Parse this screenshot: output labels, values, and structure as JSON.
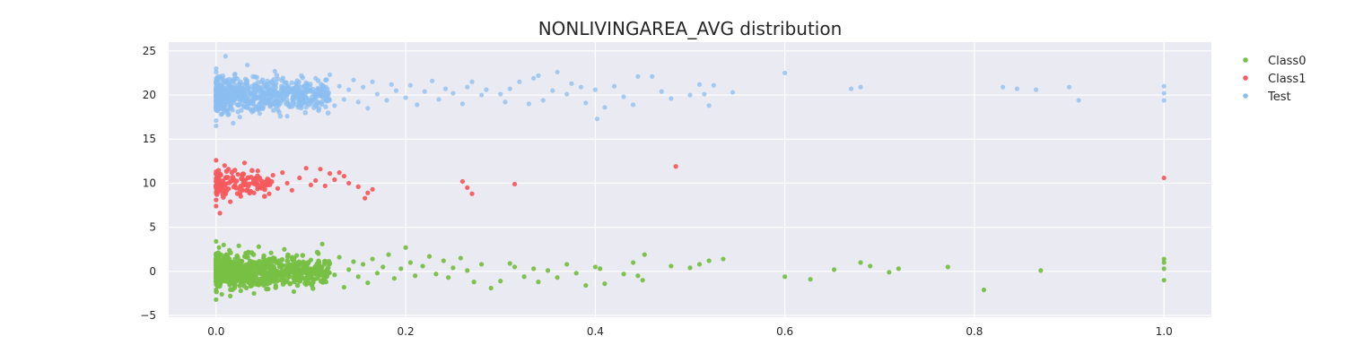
{
  "chart_data": {
    "type": "scatter",
    "title": "NONLIVINGAREA_AVG distribution",
    "xlabel": "",
    "ylabel": "",
    "xlim": [
      -0.05,
      1.05
    ],
    "ylim": [
      -5.2,
      26
    ],
    "xticks": [
      0.0,
      0.2,
      0.4,
      0.6,
      0.8,
      1.0
    ],
    "xtick_labels": [
      "0.0",
      "0.2",
      "0.4",
      "0.6",
      "0.8",
      "1.0"
    ],
    "yticks": [
      -5,
      0,
      5,
      10,
      15,
      20,
      25
    ],
    "ytick_labels": [
      "−5",
      "0",
      "5",
      "10",
      "15",
      "20",
      "25"
    ],
    "grid": true,
    "legend_position": "upper-right-outside",
    "background_color": "#eaeaf2",
    "series": [
      {
        "name": "Class0",
        "color": "#77c043",
        "center_y": 0,
        "points": [
          [
            0.0,
            0.2
          ],
          [
            0.0,
            -0.9
          ],
          [
            0.0,
            1.6
          ],
          [
            0.0,
            -2.1
          ],
          [
            0.0,
            3.4
          ],
          [
            0.0,
            -3.2
          ],
          [
            0.0,
            0.8
          ],
          [
            0.0,
            -0.4
          ],
          [
            0.003,
            2.7
          ],
          [
            0.004,
            -1.7
          ],
          [
            0.005,
            1.1
          ],
          [
            0.006,
            -2.6
          ],
          [
            0.007,
            0.5
          ],
          [
            0.008,
            3.0
          ],
          [
            0.009,
            -1.1
          ],
          [
            0.011,
            1.9
          ],
          [
            0.012,
            -0.2
          ],
          [
            0.014,
            2.4
          ],
          [
            0.015,
            -2.8
          ],
          [
            0.017,
            0.9
          ],
          [
            0.018,
            -1.4
          ],
          [
            0.02,
            1.4
          ],
          [
            0.022,
            -0.6
          ],
          [
            0.024,
            2.9
          ],
          [
            0.026,
            -2.2
          ],
          [
            0.028,
            0.3
          ],
          [
            0.03,
            1.7
          ],
          [
            0.032,
            -1.9
          ],
          [
            0.034,
            2.2
          ],
          [
            0.036,
            -0.8
          ],
          [
            0.038,
            1.0
          ],
          [
            0.04,
            -2.5
          ],
          [
            0.042,
            0.6
          ],
          [
            0.045,
            2.8
          ],
          [
            0.047,
            -1.3
          ],
          [
            0.05,
            1.5
          ],
          [
            0.052,
            -0.3
          ],
          [
            0.055,
            -2.0
          ],
          [
            0.058,
            2.1
          ],
          [
            0.06,
            0.1
          ],
          [
            0.063,
            -1.6
          ],
          [
            0.066,
            1.2
          ],
          [
            0.069,
            -0.7
          ],
          [
            0.072,
            2.5
          ],
          [
            0.075,
            -1.0
          ],
          [
            0.078,
            0.7
          ],
          [
            0.082,
            -2.3
          ],
          [
            0.085,
            1.8
          ],
          [
            0.088,
            -0.5
          ],
          [
            0.092,
            0.4
          ],
          [
            0.095,
            -1.5
          ],
          [
            0.1,
            1.3
          ],
          [
            0.104,
            -0.9
          ],
          [
            0.108,
            2.0
          ],
          [
            0.112,
            3.1
          ],
          [
            0.116,
            -1.2
          ],
          [
            0.12,
            0.9
          ],
          [
            0.125,
            -0.4
          ],
          [
            0.13,
            1.6
          ],
          [
            0.135,
            -1.8
          ],
          [
            0.14,
            0.2
          ],
          [
            0.145,
            1.1
          ],
          [
            0.15,
            -0.6
          ],
          [
            0.155,
            0.8
          ],
          [
            0.16,
            -1.3
          ],
          [
            0.165,
            1.4
          ],
          [
            0.17,
            -0.2
          ],
          [
            0.176,
            0.5
          ],
          [
            0.182,
            1.9
          ],
          [
            0.188,
            -0.8
          ],
          [
            0.195,
            0.3
          ],
          [
            0.2,
            2.7
          ],
          [
            0.205,
            1.0
          ],
          [
            0.21,
            -0.5
          ],
          [
            0.218,
            0.6
          ],
          [
            0.225,
            1.7
          ],
          [
            0.232,
            -0.3
          ],
          [
            0.24,
            1.2
          ],
          [
            0.245,
            -0.7
          ],
          [
            0.25,
            0.4
          ],
          [
            0.258,
            1.5
          ],
          [
            0.265,
            0.1
          ],
          [
            0.272,
            -1.2
          ],
          [
            0.28,
            0.8
          ],
          [
            0.29,
            -1.9
          ],
          [
            0.3,
            -1.1
          ],
          [
            0.31,
            0.9
          ],
          [
            0.315,
            0.5
          ],
          [
            0.325,
            -0.6
          ],
          [
            0.335,
            0.3
          ],
          [
            0.34,
            -1.2
          ],
          [
            0.35,
            0.1
          ],
          [
            0.36,
            -0.7
          ],
          [
            0.37,
            0.8
          ],
          [
            0.38,
            -0.2
          ],
          [
            0.39,
            -1.6
          ],
          [
            0.4,
            0.5
          ],
          [
            0.405,
            0.3
          ],
          [
            0.41,
            -1.4
          ],
          [
            0.43,
            -0.3
          ],
          [
            0.44,
            1.0
          ],
          [
            0.445,
            -0.5
          ],
          [
            0.45,
            -1.0
          ],
          [
            0.452,
            1.9
          ],
          [
            0.48,
            0.6
          ],
          [
            0.5,
            0.4
          ],
          [
            0.51,
            0.8
          ],
          [
            0.52,
            1.2
          ],
          [
            0.535,
            1.4
          ],
          [
            0.6,
            -0.6
          ],
          [
            0.627,
            -0.9
          ],
          [
            0.652,
            0.2
          ],
          [
            0.68,
            1.0
          ],
          [
            0.69,
            0.6
          ],
          [
            0.71,
            -0.1
          ],
          [
            0.72,
            0.3
          ],
          [
            0.772,
            0.5
          ],
          [
            0.81,
            -2.1
          ],
          [
            0.87,
            0.1
          ],
          [
            1.0,
            1.4
          ],
          [
            1.0,
            1.0
          ],
          [
            1.0,
            0.3
          ],
          [
            1.0,
            -1.0
          ]
        ]
      },
      {
        "name": "Class1",
        "color": "#f75b5e",
        "center_y": 10,
        "points": [
          [
            0.0,
            10.2
          ],
          [
            0.0,
            8.1
          ],
          [
            0.0,
            12.6
          ],
          [
            0.0,
            7.4
          ],
          [
            0.0,
            11.3
          ],
          [
            0.002,
            9.5
          ],
          [
            0.004,
            6.6
          ],
          [
            0.005,
            10.9
          ],
          [
            0.007,
            8.7
          ],
          [
            0.009,
            12.0
          ],
          [
            0.011,
            9.1
          ],
          [
            0.013,
            11.6
          ],
          [
            0.015,
            7.9
          ],
          [
            0.018,
            10.4
          ],
          [
            0.02,
            9.8
          ],
          [
            0.023,
            11.0
          ],
          [
            0.026,
            8.5
          ],
          [
            0.03,
            12.3
          ],
          [
            0.033,
            9.3
          ],
          [
            0.037,
            10.7
          ],
          [
            0.04,
            8.9
          ],
          [
            0.044,
            11.4
          ],
          [
            0.048,
            9.6
          ],
          [
            0.052,
            10.1
          ],
          [
            0.056,
            8.8
          ],
          [
            0.06,
            10.9
          ],
          [
            0.065,
            9.4
          ],
          [
            0.07,
            11.2
          ],
          [
            0.075,
            10.0
          ],
          [
            0.08,
            9.2
          ],
          [
            0.088,
            10.6
          ],
          [
            0.095,
            11.7
          ],
          [
            0.1,
            9.8
          ],
          [
            0.105,
            10.3
          ],
          [
            0.11,
            11.6
          ],
          [
            0.115,
            9.7
          ],
          [
            0.12,
            11.1
          ],
          [
            0.125,
            10.4
          ],
          [
            0.13,
            11.2
          ],
          [
            0.135,
            10.8
          ],
          [
            0.14,
            10.0
          ],
          [
            0.15,
            9.6
          ],
          [
            0.157,
            8.3
          ],
          [
            0.16,
            8.9
          ],
          [
            0.165,
            9.3
          ],
          [
            0.26,
            10.2
          ],
          [
            0.265,
            9.5
          ],
          [
            0.27,
            8.8
          ],
          [
            0.315,
            9.9
          ],
          [
            0.485,
            11.9
          ],
          [
            1.0,
            10.6
          ]
        ]
      },
      {
        "name": "Test",
        "color": "#8bbef0",
        "center_y": 20,
        "points": [
          [
            0.0,
            20.3
          ],
          [
            0.0,
            17.1
          ],
          [
            0.0,
            22.6
          ],
          [
            0.0,
            16.5
          ],
          [
            0.0,
            23.0
          ],
          [
            0.0,
            18.7
          ],
          [
            0.0,
            21.5
          ],
          [
            0.002,
            19.4
          ],
          [
            0.004,
            22.1
          ],
          [
            0.006,
            17.8
          ],
          [
            0.008,
            20.9
          ],
          [
            0.01,
            24.4
          ],
          [
            0.012,
            18.2
          ],
          [
            0.014,
            21.8
          ],
          [
            0.016,
            19.0
          ],
          [
            0.018,
            16.8
          ],
          [
            0.02,
            22.4
          ],
          [
            0.022,
            20.0
          ],
          [
            0.025,
            17.5
          ],
          [
            0.028,
            21.2
          ],
          [
            0.03,
            19.6
          ],
          [
            0.033,
            23.4
          ],
          [
            0.036,
            18.4
          ],
          [
            0.04,
            20.7
          ],
          [
            0.043,
            22.0
          ],
          [
            0.046,
            17.9
          ],
          [
            0.05,
            20.1
          ],
          [
            0.054,
            21.6
          ],
          [
            0.058,
            18.9
          ],
          [
            0.062,
            22.7
          ],
          [
            0.066,
            19.3
          ],
          [
            0.07,
            20.8
          ],
          [
            0.075,
            17.6
          ],
          [
            0.08,
            21.4
          ],
          [
            0.085,
            19.8
          ],
          [
            0.09,
            22.2
          ],
          [
            0.095,
            18.6
          ],
          [
            0.1,
            20.5
          ],
          [
            0.105,
            21.9
          ],
          [
            0.11,
            19.1
          ],
          [
            0.115,
            20.3
          ],
          [
            0.12,
            22.3
          ],
          [
            0.125,
            18.8
          ],
          [
            0.13,
            21.0
          ],
          [
            0.135,
            19.5
          ],
          [
            0.14,
            20.6
          ],
          [
            0.145,
            21.7
          ],
          [
            0.15,
            19.2
          ],
          [
            0.155,
            20.9
          ],
          [
            0.16,
            18.5
          ],
          [
            0.165,
            21.5
          ],
          [
            0.17,
            20.1
          ],
          [
            0.18,
            19.4
          ],
          [
            0.185,
            21.2
          ],
          [
            0.19,
            20.5
          ],
          [
            0.2,
            19.7
          ],
          [
            0.205,
            21.1
          ],
          [
            0.212,
            18.9
          ],
          [
            0.22,
            20.4
          ],
          [
            0.228,
            21.6
          ],
          [
            0.235,
            19.5
          ],
          [
            0.242,
            20.7
          ],
          [
            0.25,
            20.2
          ],
          [
            0.26,
            19.0
          ],
          [
            0.265,
            20.9
          ],
          [
            0.27,
            21.5
          ],
          [
            0.28,
            20.0
          ],
          [
            0.285,
            20.6
          ],
          [
            0.3,
            20.1
          ],
          [
            0.305,
            19.2
          ],
          [
            0.31,
            20.7
          ],
          [
            0.32,
            21.5
          ],
          [
            0.33,
            19.0
          ],
          [
            0.335,
            21.9
          ],
          [
            0.34,
            22.2
          ],
          [
            0.345,
            19.4
          ],
          [
            0.355,
            20.5
          ],
          [
            0.36,
            22.6
          ],
          [
            0.37,
            20.1
          ],
          [
            0.375,
            21.3
          ],
          [
            0.385,
            20.9
          ],
          [
            0.39,
            19.1
          ],
          [
            0.4,
            20.6
          ],
          [
            0.402,
            17.3
          ],
          [
            0.41,
            18.6
          ],
          [
            0.42,
            21.0
          ],
          [
            0.43,
            19.8
          ],
          [
            0.44,
            18.9
          ],
          [
            0.445,
            22.1
          ],
          [
            0.46,
            22.1
          ],
          [
            0.47,
            20.4
          ],
          [
            0.48,
            19.6
          ],
          [
            0.5,
            20.0
          ],
          [
            0.51,
            21.2
          ],
          [
            0.515,
            20.1
          ],
          [
            0.52,
            18.8
          ],
          [
            0.525,
            21.1
          ],
          [
            0.545,
            20.3
          ],
          [
            0.6,
            22.5
          ],
          [
            0.67,
            20.7
          ],
          [
            0.68,
            20.9
          ],
          [
            0.83,
            20.9
          ],
          [
            0.845,
            20.7
          ],
          [
            0.865,
            20.6
          ],
          [
            0.9,
            20.9
          ],
          [
            0.91,
            19.4
          ],
          [
            1.0,
            21.0
          ],
          [
            1.0,
            20.2
          ],
          [
            1.0,
            19.4
          ]
        ]
      }
    ]
  }
}
